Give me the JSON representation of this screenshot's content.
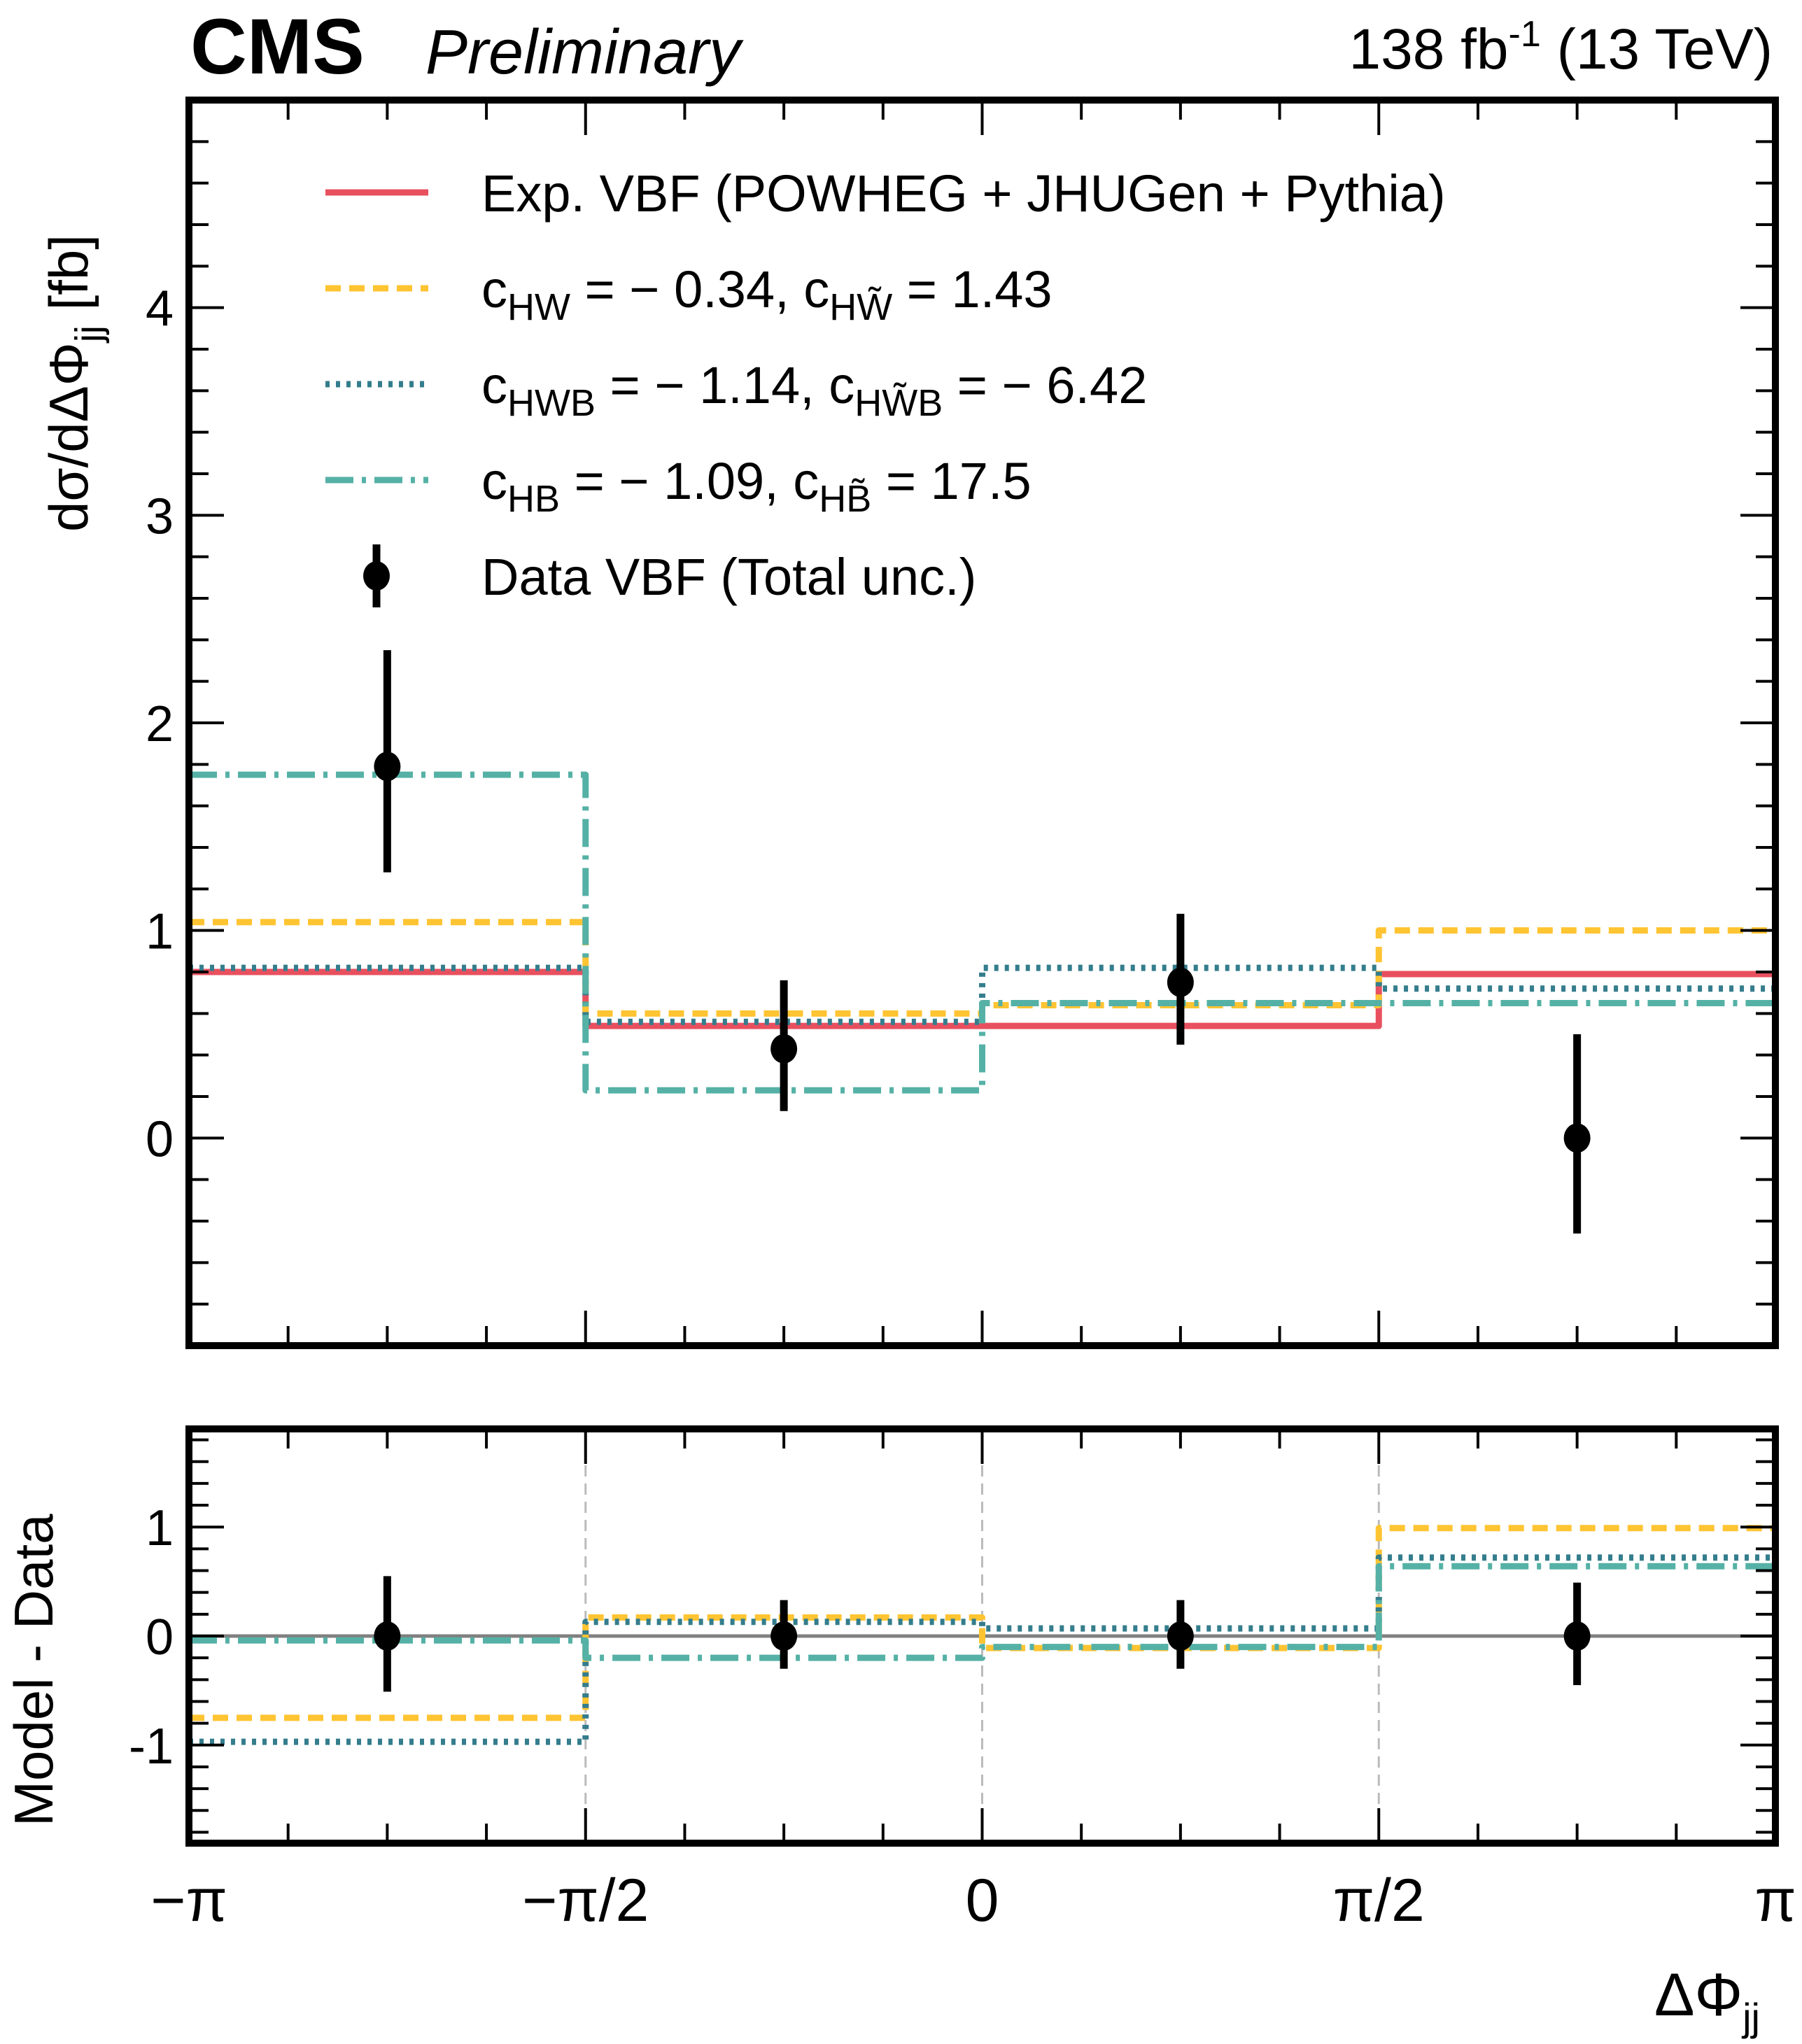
{
  "header": {
    "experiment": "CMS",
    "status": "Preliminary",
    "luminosity": "138 fb",
    "luminosity_exp": "-1",
    "energy": "(13 TeV)"
  },
  "chart_data": [
    {
      "panel": "main",
      "type": "line",
      "step": true,
      "ylabel": "dσ/dΔΦ",
      "ylabel_sub": "jj",
      "ylabel_unit": "[fb]",
      "xlim": [
        -3.14159,
        3.14159
      ],
      "ylim": [
        -1.0,
        5.0
      ],
      "yticks": [
        0,
        1,
        2,
        3,
        4
      ],
      "ytick_labels": [
        "0",
        "1",
        "2",
        "3",
        "4"
      ],
      "bin_edges": [
        -3.14159,
        -1.5708,
        0,
        1.5708,
        3.14159
      ],
      "grid": false,
      "legend_position": "top",
      "series": [
        {
          "name": "Exp. VBF (POWHEG + JHUGen + Pythia)",
          "style": "solid",
          "color": "#E8505F",
          "values": [
            0.8,
            0.54,
            0.54,
            0.79
          ]
        },
        {
          "name": "c_HW = −0.34, c_HW̃ = 1.43",
          "style": "dashed",
          "color": "#FFC432",
          "values": [
            1.04,
            0.6,
            0.64,
            1.0
          ]
        },
        {
          "name": "c_HWB = −1.14, c_HW̃B = −6.42",
          "style": "dotted",
          "color": "#347D8D",
          "values": [
            0.82,
            0.56,
            0.82,
            0.72
          ]
        },
        {
          "name": "c_HB = −1.09, c_HB̃ = 17.5",
          "style": "dashdot",
          "color": "#55B1A5",
          "values": [
            1.75,
            0.23,
            0.65,
            0.65
          ]
        }
      ],
      "data": {
        "name": "Data VBF (Total unc.)",
        "x": [
          -2.3562,
          -0.7854,
          0.7854,
          2.3562
        ],
        "y": [
          1.79,
          0.43,
          0.75,
          0.0
        ],
        "err_up": [
          0.56,
          0.33,
          0.33,
          0.5
        ],
        "err_down": [
          0.51,
          0.3,
          0.3,
          0.46
        ]
      },
      "legend": [
        {
          "kind": "line",
          "style": "solid",
          "color": "#E8505F",
          "text": "Exp. VBF (POWHEG + JHUGen + Pythia)"
        },
        {
          "kind": "line",
          "style": "dashed",
          "color": "#FFC432",
          "parts": [
            [
              "c",
              ""
            ],
            [
              "HW",
              "sub"
            ],
            [
              " = − 0.34, c",
              ""
            ],
            [
              "HW̃",
              "sub"
            ],
            [
              " = 1.43",
              ""
            ]
          ]
        },
        {
          "kind": "line",
          "style": "dotted",
          "color": "#347D8D",
          "parts": [
            [
              "c",
              ""
            ],
            [
              "HWB",
              "sub"
            ],
            [
              " = − 1.14, c",
              ""
            ],
            [
              "HW̃B",
              "sub"
            ],
            [
              " = − 6.42",
              ""
            ]
          ]
        },
        {
          "kind": "line",
          "style": "dashdot",
          "color": "#55B1A5",
          "parts": [
            [
              "c",
              ""
            ],
            [
              "HB",
              "sub"
            ],
            [
              " = − 1.09, c",
              ""
            ],
            [
              "HB̃",
              "sub"
            ],
            [
              " = 17.5",
              ""
            ]
          ]
        },
        {
          "kind": "marker",
          "color": "#000000",
          "text": "Data VBF (Total unc.)"
        }
      ]
    },
    {
      "panel": "ratio",
      "type": "line",
      "step": true,
      "ylabel": "Model - Data",
      "xlabel": "ΔΦ",
      "xlabel_sub": "jj",
      "xlim": [
        -3.14159,
        3.14159
      ],
      "ylim": [
        -1.9,
        1.9
      ],
      "yticks": [
        -1,
        0,
        1
      ],
      "ytick_labels": [
        "-1",
        "0",
        "1"
      ],
      "xticks": [
        -3.14159,
        -1.5708,
        0,
        1.5708,
        3.14159
      ],
      "xtick_labels": [
        "−π",
        "−π/2",
        "0",
        "π/2",
        "π"
      ],
      "reference_line": 0,
      "bin_edges": [
        -3.14159,
        -1.5708,
        0,
        1.5708,
        3.14159
      ],
      "series": [
        {
          "name": "c_HW = −0.34, c_HW̃ = 1.43",
          "style": "dashed",
          "color": "#FFC432",
          "values": [
            -0.75,
            0.17,
            -0.11,
            0.99
          ]
        },
        {
          "name": "c_HWB = −1.14, c_HW̃B = −6.42",
          "style": "dotted",
          "color": "#347D8D",
          "values": [
            -0.97,
            0.13,
            0.07,
            0.72
          ]
        },
        {
          "name": "c_HB = −1.09, c_HB̃ = 17.5",
          "style": "dashdot",
          "color": "#55B1A5",
          "values": [
            -0.04,
            -0.2,
            -0.1,
            0.64
          ]
        }
      ],
      "data": {
        "x": [
          -2.3562,
          -0.7854,
          0.7854,
          2.3562
        ],
        "y": [
          0,
          0,
          0,
          0
        ],
        "err_up": [
          0.55,
          0.33,
          0.33,
          0.49
        ],
        "err_down": [
          0.51,
          0.3,
          0.3,
          0.45
        ]
      }
    }
  ]
}
